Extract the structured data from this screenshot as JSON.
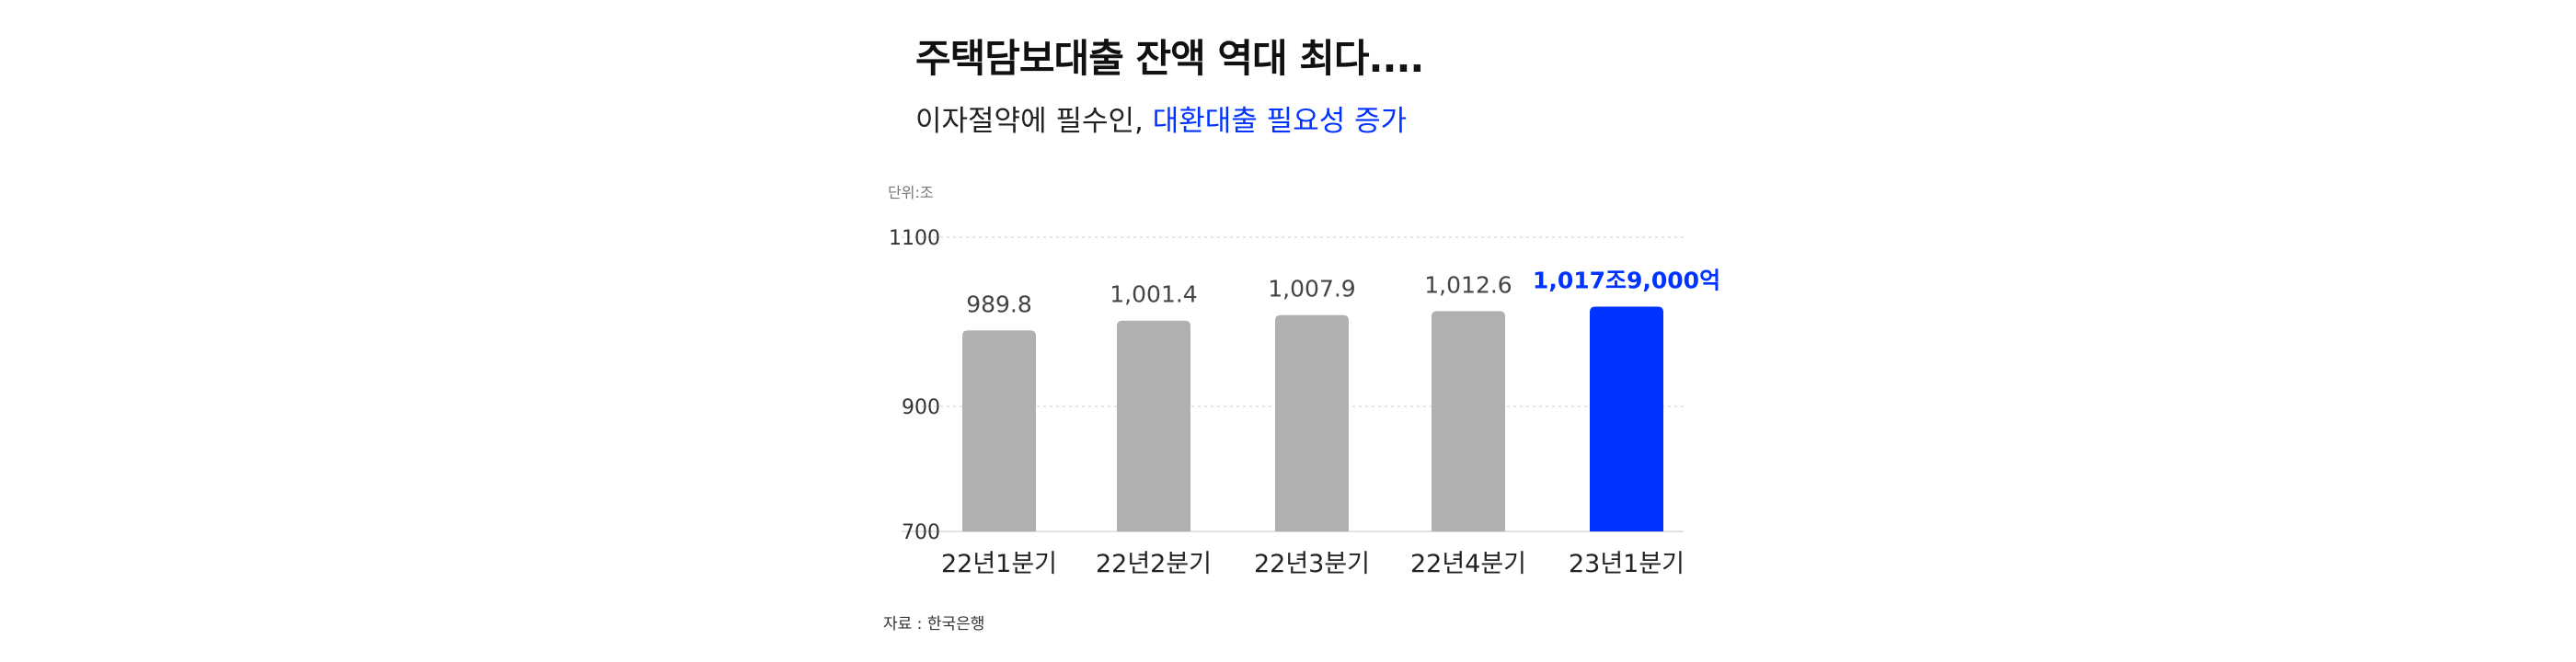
{
  "header": {
    "title": "주택담보대출 잔액 역대 최다....",
    "subtitle_plain": "이자절약에 필수인, ",
    "subtitle_highlight": "대환대출 필요성 증가"
  },
  "unit_label": "단위:조",
  "source_label": "자료 : 한국은행",
  "colors": {
    "bar": "#b0b0b0",
    "highlight": "#0033ff",
    "grid": "#d8d8d8"
  },
  "chart_data": {
    "type": "bar",
    "categories": [
      "22년1분기",
      "22년2분기",
      "22년3분기",
      "22년4분기",
      "23년1분기"
    ],
    "values": [
      989.8,
      1001.4,
      1007.9,
      1012.6,
      1017.9
    ],
    "data_labels": [
      "989.8",
      "1,001.4",
      "1,007.9",
      "1,012.6",
      "1,017조9,000억"
    ],
    "highlight_index": 4,
    "y_ticks": [
      700,
      900,
      1100
    ],
    "y_tick_labels": [
      "700",
      "900",
      "1100"
    ],
    "ylim": [
      700,
      1100
    ],
    "y_scale": "broken",
    "grid": true,
    "xlabel": "",
    "ylabel": ""
  }
}
